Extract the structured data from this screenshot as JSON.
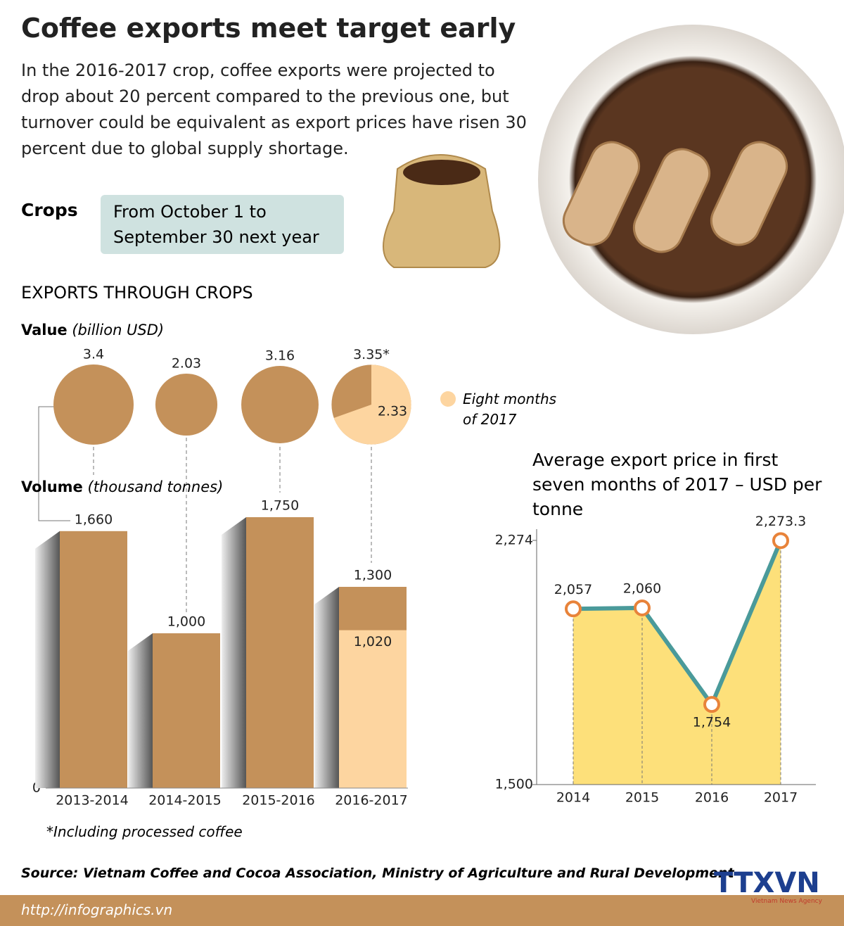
{
  "title": "Coffee exports meet target early",
  "intro": "In the 2016-2017 crop, coffee exports were projected to drop about 20 percent compared to the previous one, but turnover could be equivalent as export prices have risen 30 percent due to global supply shortage.",
  "crops_label": "Crops",
  "crops_text": "From October 1 to September 30 next year",
  "section": "EXPORTS THROUGH CROPS",
  "chart_data": [
    {
      "type": "bubble",
      "title": "Value",
      "subtitle": "(billion USD)",
      "values": [
        3.4,
        2.03,
        3.16,
        3.35
      ],
      "value_labels": [
        "3.4",
        "2.03",
        "3.16",
        "3.35*"
      ],
      "color": "#c4915a",
      "highlight": {
        "name": "Eight months of 2017",
        "color": "#fdd5a0",
        "values": [
          null,
          null,
          null,
          2.33
        ]
      }
    },
    {
      "type": "bar",
      "title": "Volume",
      "subtitle": "(thousand tonnes)",
      "categories": [
        "2013-2014",
        "2014-2015",
        "2015-2016",
        "2016-2017"
      ],
      "values": [
        1660,
        1000,
        1750,
        1300
      ],
      "value_labels": [
        "1,660",
        "1,000",
        "1,750",
        "1,300"
      ],
      "color": "#c4915a",
      "highlight": {
        "color": "#fdd5a0",
        "values": [
          null,
          null,
          null,
          1020
        ],
        "value_labels": [
          null,
          null,
          null,
          "1,020"
        ]
      },
      "ylim": [
        0,
        1750
      ],
      "yticks": [
        0
      ]
    },
    {
      "type": "line",
      "title": "Average export price in first seven months of 2017 – USD per tonne",
      "categories": [
        "2014",
        "2015",
        "2016",
        "2017"
      ],
      "values": [
        2057,
        2060,
        1754,
        2273.3
      ],
      "value_labels": [
        "2,057",
        "2,060",
        "1,754",
        "2,273.3"
      ],
      "color": "#4a9a9a",
      "fill": "#fde07a",
      "marker_color": "#e8833a",
      "ylim": [
        1500,
        2274
      ],
      "yticks": [
        {
          "value": 1500,
          "label": "1,500"
        },
        {
          "value": 2274,
          "label": "2,274"
        }
      ]
    }
  ],
  "footnote": "*Including processed coffee",
  "source": "Source: Vietnam Coffee and Cocoa Association, Ministry of Agriculture and Rural Development",
  "url": "http://infographics.vn",
  "logo": "TTXVN",
  "logo_sub": "Vietnam News Agency"
}
